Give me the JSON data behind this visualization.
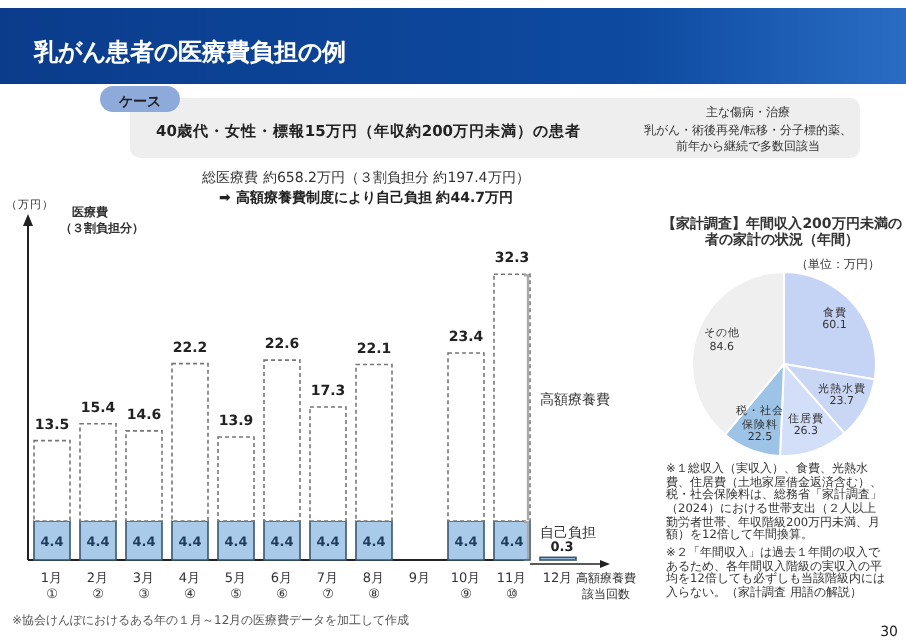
{
  "chart_data": [
    {
      "type": "bar",
      "stacked": true,
      "title": "乳がん患者の医療費負担の例",
      "ylabel": "（万円）",
      "categories": [
        "1月\n①",
        "2月\n②",
        "3月\n③",
        "4月\n④",
        "5月\n⑤",
        "6月\n⑥",
        "7月\n⑦",
        "8月\n⑧",
        "9月",
        "10月\n⑨",
        "11月\n⑩",
        "12月"
      ],
      "series": [
        {
          "name": "自己負担",
          "color": "#a9cbe9",
          "values": [
            4.4,
            4.4,
            4.4,
            4.4,
            4.4,
            4.4,
            4.4,
            4.4,
            null,
            4.4,
            4.4,
            0.3
          ],
          "value_labels": [
            "4.4",
            "4.4",
            "4.4",
            "4.4",
            "4.4",
            "4.4",
            "4.4",
            "4.4",
            null,
            "4.4",
            "4.4",
            "0.3"
          ]
        },
        {
          "name": "高額療養費",
          "color": "#ffffff",
          "values": [
            9.1,
            11.0,
            10.2,
            17.8,
            9.5,
            18.2,
            12.9,
            17.7,
            null,
            19.0,
            27.9,
            null
          ]
        }
      ],
      "totals": [
        "13.5",
        "15.4",
        "14.6",
        "22.2",
        "13.9",
        "22.6",
        "17.3",
        "22.1",
        null,
        "23.4",
        "32.3",
        null
      ],
      "annotations": [
        "ケース",
        "40歳代・女性・標報15万円（年収約200万円未満）の患者",
        "主な傷病・治療",
        "乳がん・術後再発/転移・分子標的薬、",
        "前年から継続で多数回該当",
        "総医療費 約658.2万円（３割負担分 約197.4万円）",
        "➡ 高額療養費制度により自己負担 約44.7万円",
        "医療費",
        "（３割負担分）",
        "高額療養費",
        "該当回数",
        "※協会けんぽにおけるある年の１月～12月の医療費データを加工して作成",
        "30"
      ]
    },
    {
      "type": "pie",
      "title": "【家計調査】年間収入200万円未満の者の家計の状況（年間）",
      "subtitle": "（単位：万円）",
      "categories": [
        "食費",
        "光熱水費",
        "住居費",
        "税・社会保険料",
        "その他"
      ],
      "values": [
        60.1,
        23.7,
        26.3,
        22.5,
        84.6
      ],
      "colors": [
        "#c5d3f5",
        "#c9d6f4",
        "#d3def8",
        "#9dc3e6",
        "#efefef"
      ],
      "data_labels": true,
      "annotations": [
        "※１総収入（実収入）、食費、光熱水費、住居費（土地家屋借金返済含む）、税・社会保険料は、総務省「家計調査」（2024）における世帯支出（２人以上勤労者世帯、年収階級200万円未満、月額）を12倍して年間換算。",
        "※２「年間収入」は過去１年間の収入であるため、各年間収入階級の実収入の平均を12倍しても必ずしも当該階級内には入らない。（家計調査 用語の解説）"
      ]
    }
  ]
}
